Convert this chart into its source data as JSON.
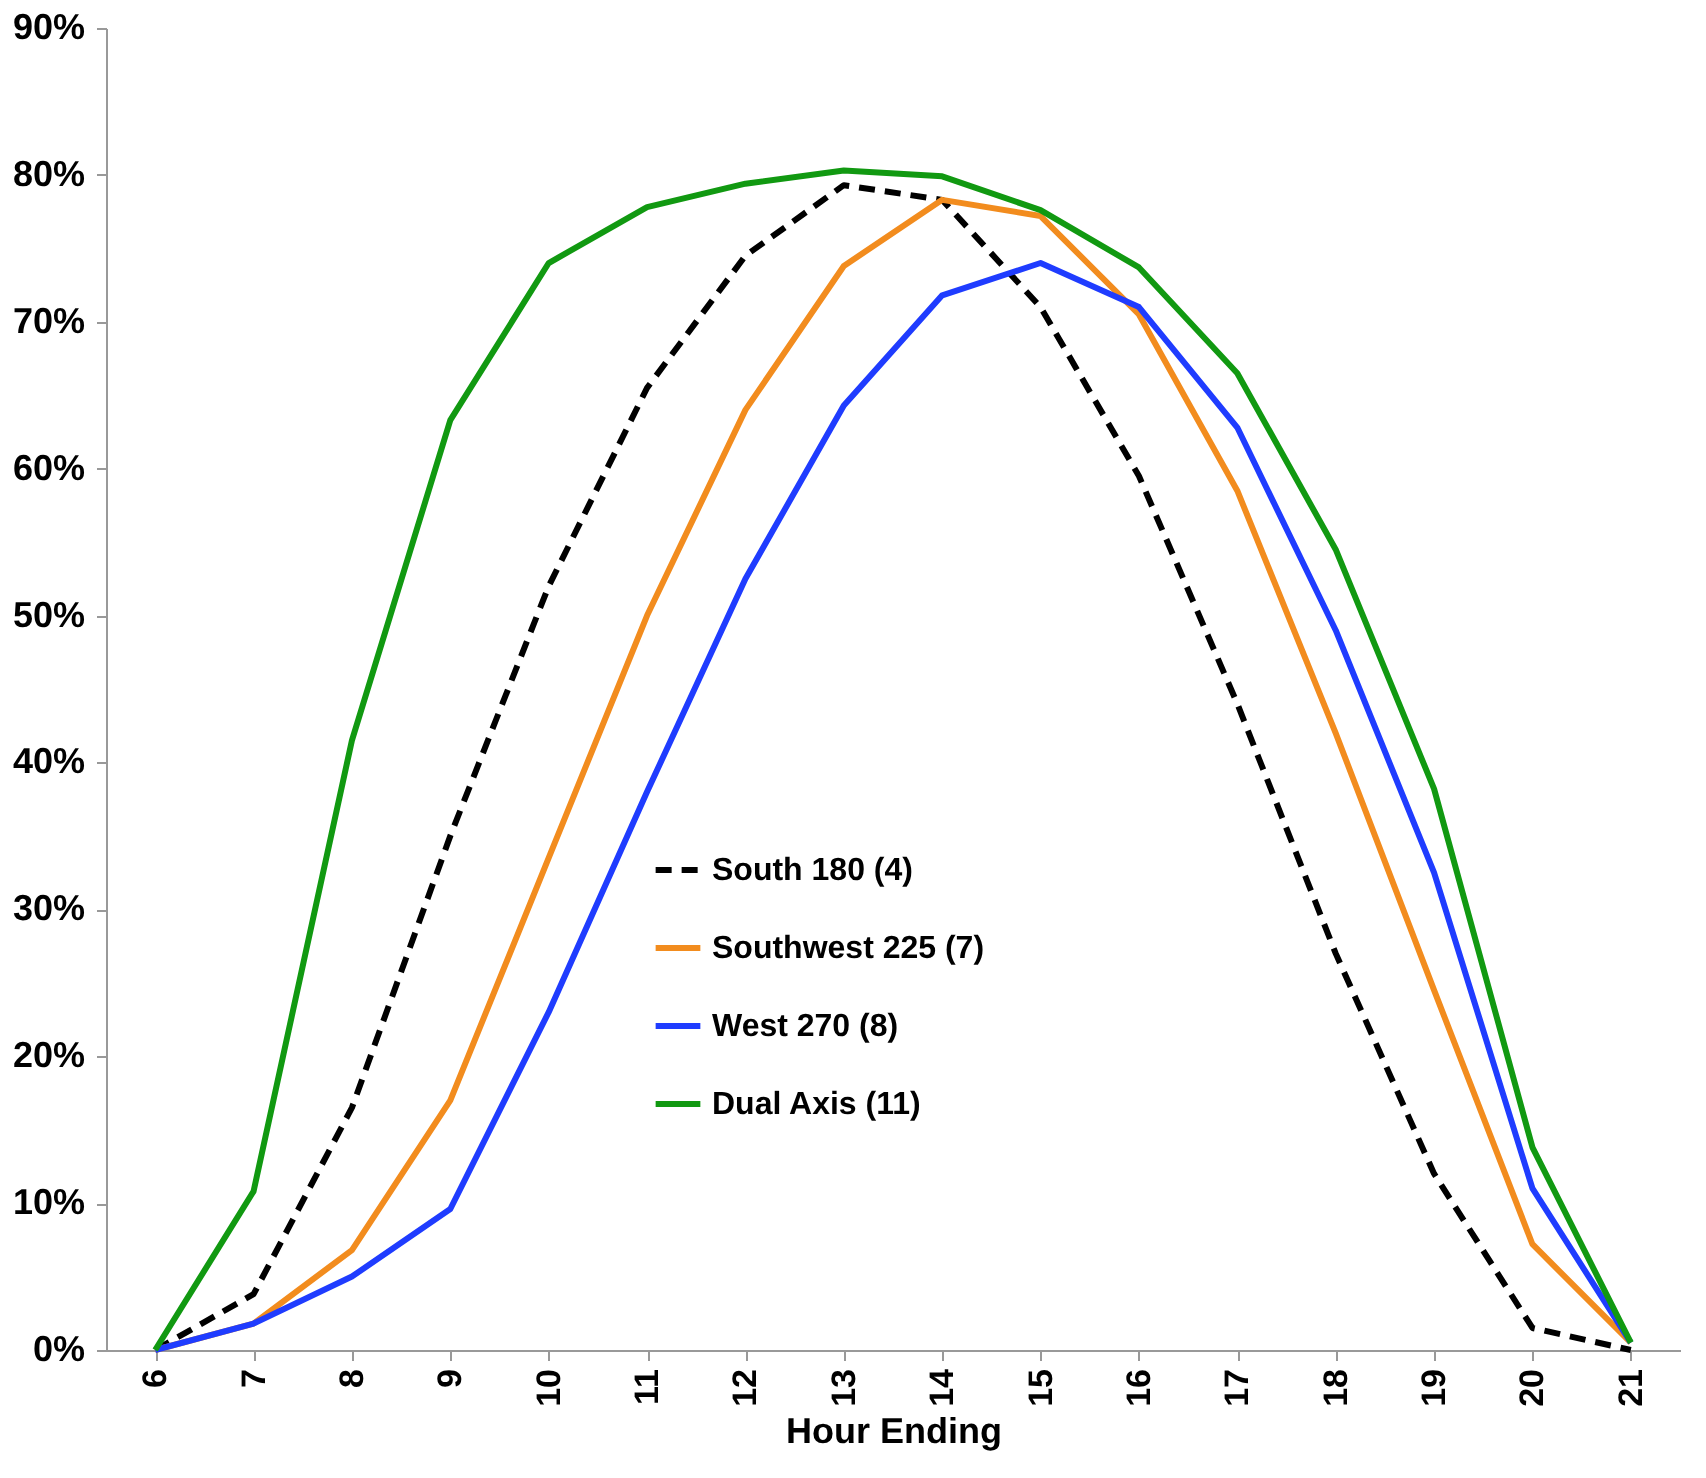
{
  "chart_data": {
    "type": "line",
    "xlabel": "Hour Ending",
    "categories": [
      "6",
      "7",
      "8",
      "9",
      "10",
      "11",
      "12",
      "13",
      "14",
      "15",
      "16",
      "17",
      "18",
      "19",
      "20",
      "21"
    ],
    "series": [
      {
        "name": "South 180 (4)",
        "color": "#000000",
        "line_style": "dashed",
        "values": [
          0,
          3.8,
          16.5,
          35,
          52,
          65.5,
          74.5,
          79.3,
          78.3,
          71,
          59.5,
          44,
          27,
          12,
          1.5,
          0
        ]
      },
      {
        "name": "Southwest 225 (7)",
        "color": "#f28c1e",
        "line_style": "solid",
        "values": [
          0,
          1.8,
          6.8,
          17,
          33.5,
          50,
          64,
          73.8,
          78.3,
          77.2,
          70.5,
          58.5,
          42,
          24.5,
          7.2,
          0.5
        ]
      },
      {
        "name": "West 270 (8)",
        "color": "#1f3cff",
        "line_style": "solid",
        "values": [
          0,
          1.8,
          5,
          9.6,
          23,
          38,
          52.5,
          64.3,
          71.8,
          74,
          71,
          62.8,
          49,
          32.5,
          11,
          0.5
        ]
      },
      {
        "name": "Dual Axis (11)",
        "color": "#119911",
        "line_style": "solid",
        "values": [
          0,
          10.8,
          41.5,
          63.3,
          74,
          77.8,
          79.4,
          80.3,
          79.9,
          77.6,
          73.7,
          66.5,
          54.5,
          38.2,
          13.8,
          0.5
        ]
      }
    ],
    "ylim": [
      0,
      90
    ],
    "yticks": [
      {
        "value": 0,
        "label": "0%"
      },
      {
        "value": 10,
        "label": "10%"
      },
      {
        "value": 20,
        "label": "20%"
      },
      {
        "value": 30,
        "label": "30%"
      },
      {
        "value": 40,
        "label": "40%"
      },
      {
        "value": 50,
        "label": "50%"
      },
      {
        "value": 60,
        "label": "60%"
      },
      {
        "value": 70,
        "label": "70%"
      },
      {
        "value": 80,
        "label": "80%"
      },
      {
        "value": 90,
        "label": "90%"
      }
    ],
    "grid": false,
    "legend": "bottom",
    "marker": "none"
  }
}
